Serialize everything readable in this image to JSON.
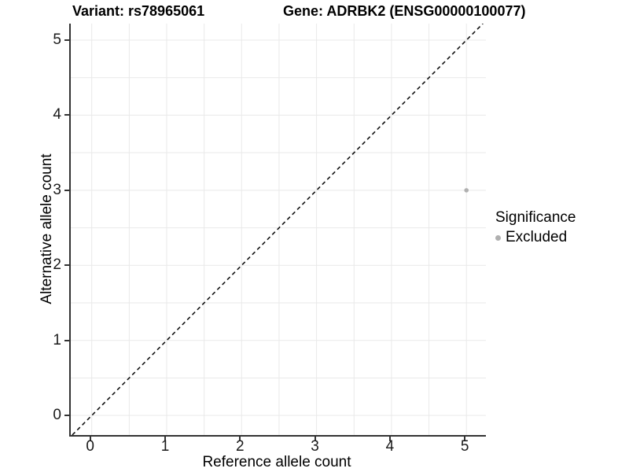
{
  "header": {
    "variant_title": "Variant: rs78965061",
    "gene_title": "Gene: ADRBK2 (ENSG00000100077)"
  },
  "legend": {
    "title": "Significance",
    "position": "right",
    "items": [
      {
        "label": "Excluded",
        "color": "#b0b0b0"
      }
    ]
  },
  "chart_data": {
    "type": "scatter",
    "xlabel": "Reference allele count",
    "ylabel": "Alternative allele count",
    "x_ticks": [
      "0",
      "1",
      "2",
      "3",
      "4",
      "5"
    ],
    "y_ticks": [
      "0",
      "1",
      "2",
      "3",
      "4",
      "5"
    ],
    "x_tick_values": [
      0,
      1,
      2,
      3,
      4,
      5
    ],
    "y_tick_values": [
      0,
      1,
      2,
      3,
      4,
      5
    ],
    "xlim": [
      -0.28,
      5.26
    ],
    "ylim": [
      -0.26,
      5.22
    ],
    "grid": true,
    "grid_step": 0.5,
    "grid_color": "#e9e9e9",
    "axis_color": "#333333",
    "points": [
      {
        "x": 5,
        "y": 3,
        "significance": "Excluded",
        "color": "#b0b0b0",
        "radius": 2.8
      }
    ],
    "reference_line": {
      "type": "abline",
      "slope": 1,
      "intercept": 0,
      "style": "dashed",
      "color": "#111111",
      "dash": [
        5,
        4
      ],
      "width": 1.6
    }
  }
}
